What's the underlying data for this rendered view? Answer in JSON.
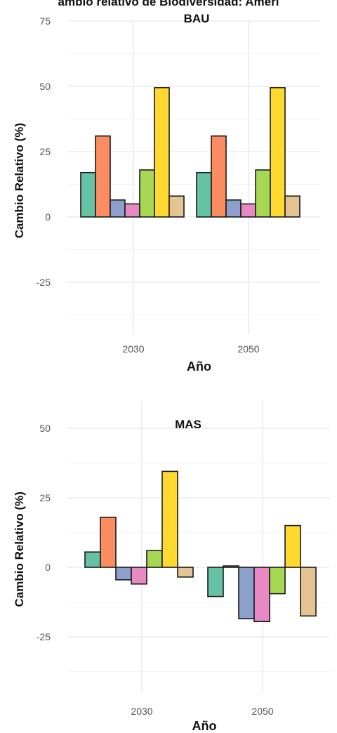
{
  "title": "ambio relativo de Biodiversidad: Ameri",
  "chart_data": [
    {
      "type": "bar",
      "title": "BAU",
      "xlabel": "Año",
      "ylabel": "Cambio Relativo (%)",
      "categories": [
        "2030",
        "2050"
      ],
      "ylim": [
        -45,
        75
      ],
      "yticks": [
        -25,
        0,
        25,
        50,
        75
      ],
      "grid": true,
      "legend": "none",
      "series": [
        {
          "color": "#66c2a5",
          "values": [
            17,
            17
          ]
        },
        {
          "color": "#fc8d62",
          "values": [
            31,
            31
          ]
        },
        {
          "color": "#8da0cb",
          "values": [
            6.5,
            6.5
          ]
        },
        {
          "color": "#e78ac3",
          "values": [
            5,
            5
          ]
        },
        {
          "color": "#a6d854",
          "values": [
            18,
            18
          ]
        },
        {
          "color": "#ffd92f",
          "values": [
            49.5,
            49.5
          ]
        },
        {
          "color": "#e5c494",
          "values": [
            8,
            8
          ]
        }
      ]
    },
    {
      "type": "bar",
      "title": "MAS",
      "xlabel": "Año",
      "ylabel": "Cambio Relativo (%)",
      "categories": [
        "2030",
        "2050"
      ],
      "ylim": [
        -45,
        60
      ],
      "yticks": [
        -25,
        0,
        25,
        50
      ],
      "grid": true,
      "legend": "none",
      "series": [
        {
          "color": "#66c2a5",
          "values": [
            5.5,
            -10.5
          ]
        },
        {
          "color": "#fc8d62",
          "values": [
            18,
            0.5
          ]
        },
        {
          "color": "#8da0cb",
          "values": [
            -4.5,
            -18.5
          ]
        },
        {
          "color": "#e78ac3",
          "values": [
            -6,
            -19.5
          ]
        },
        {
          "color": "#a6d854",
          "values": [
            6,
            -9.5
          ]
        },
        {
          "color": "#ffd92f",
          "values": [
            34.5,
            15
          ]
        },
        {
          "color": "#e5c494",
          "values": [
            -3.5,
            -17.5
          ]
        }
      ]
    }
  ]
}
